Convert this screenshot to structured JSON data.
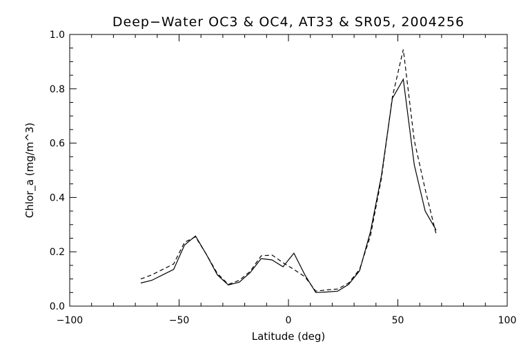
{
  "chart_data": {
    "type": "line",
    "title": "Deep−Water OC3 & OC4, AT33 & SR05, 2004256",
    "xlabel": "Latitude (deg)",
    "ylabel": "Chlor_a (mg/m^3)",
    "xlim": [
      -100,
      100
    ],
    "ylim": [
      0.0,
      1.0
    ],
    "x_ticks": [
      -100,
      -50,
      0,
      50,
      100
    ],
    "x_tick_labels": [
      "−100",
      "−50",
      "0",
      "50",
      "100"
    ],
    "y_ticks": [
      0.0,
      0.2,
      0.4,
      0.6,
      0.8,
      1.0
    ],
    "y_tick_labels": [
      "0.0",
      "0.2",
      "0.4",
      "0.6",
      "0.8",
      "1.0"
    ],
    "grid": false,
    "series": [
      {
        "style": "solid",
        "x": [
          -67.5,
          -62.5,
          -57.5,
          -52.5,
          -47.5,
          -42.5,
          -37.5,
          -32.5,
          -27.5,
          -22.5,
          -17.5,
          -12.5,
          -7.5,
          -2.5,
          2.5,
          7.5,
          12.5,
          17.5,
          22.5,
          27.5,
          32.5,
          37.5,
          42.5,
          47.5,
          52.5,
          57.5,
          62.5,
          67.5
        ],
        "values": [
          0.085,
          0.095,
          0.115,
          0.135,
          0.225,
          0.258,
          0.19,
          0.115,
          0.078,
          0.088,
          0.123,
          0.175,
          0.17,
          0.145,
          0.195,
          0.115,
          0.05,
          0.052,
          0.055,
          0.08,
          0.13,
          0.275,
          0.48,
          0.765,
          0.835,
          0.52,
          0.35,
          0.28
        ]
      },
      {
        "style": "dashed",
        "x": [
          -67.5,
          -62.5,
          -57.5,
          -52.5,
          -47.5,
          -42.5,
          -37.5,
          -32.5,
          -27.5,
          -22.5,
          -17.5,
          -12.5,
          -7.5,
          -2.5,
          2.5,
          7.5,
          12.5,
          17.5,
          22.5,
          27.5,
          32.5,
          37.5,
          42.5,
          47.5,
          52.5,
          57.5,
          62.5,
          67.5
        ],
        "values": [
          0.1,
          0.115,
          0.135,
          0.155,
          0.235,
          0.255,
          0.19,
          0.12,
          0.08,
          0.095,
          0.128,
          0.185,
          0.188,
          0.16,
          0.135,
          0.108,
          0.055,
          0.06,
          0.063,
          0.085,
          0.135,
          0.26,
          0.47,
          0.77,
          0.945,
          0.61,
          0.43,
          0.265
        ]
      }
    ]
  }
}
